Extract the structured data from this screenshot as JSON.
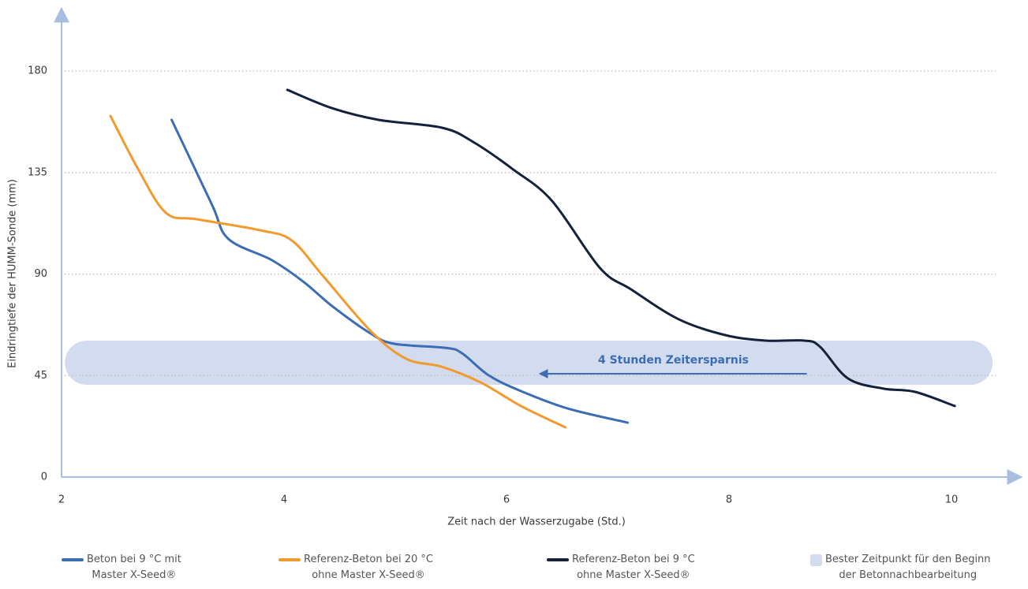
{
  "chart_data": {
    "type": "line",
    "x_label": "Zeit nach der Wasserzugabe (Std.)",
    "y_label": "Eindringtiefe der HUMM-Sonde (mm)",
    "xlim": [
      2,
      10.5
    ],
    "ylim": [
      0,
      205
    ],
    "xticks": [
      2,
      4,
      6,
      8,
      10
    ],
    "yticks": [
      0,
      45,
      90,
      135,
      180
    ],
    "grid": true,
    "series": [
      {
        "name": "Beton bei 9 °C mit\nMaster X-Seed®",
        "color": "#3b6db4",
        "x": [
          2.99,
          3.35,
          3.5,
          3.89,
          4.18,
          4.43,
          4.78,
          4.99,
          5.45,
          5.6,
          5.84,
          6.13,
          6.55,
          7.09
        ],
        "values": [
          158.4,
          121,
          105.6,
          96.2,
          86.4,
          75.9,
          63.6,
          59.1,
          57.3,
          54.9,
          45.1,
          38.1,
          30.4,
          24.1
        ]
      },
      {
        "name": "Referenz-Beton bei 20 °C\nohne Master X-Seed®",
        "color": "#f29a2e",
        "x": [
          2.44,
          2.69,
          2.94,
          3.22,
          3.79,
          4.07,
          4.35,
          4.78,
          5.1,
          5.42,
          5.77,
          6.13,
          6.53
        ],
        "values": [
          160.1,
          136.4,
          117.1,
          114.3,
          109.4,
          104.9,
          89.2,
          64.7,
          52.4,
          48.9,
          41.9,
          31.5,
          22.0
        ]
      },
      {
        "name": "Referenz-Beton bei 9 °C\nohne Master X-Seed®",
        "color": "#13213b",
        "x": [
          4.03,
          4.43,
          4.85,
          5.42,
          5.7,
          6.06,
          6.41,
          6.84,
          7.12,
          7.55,
          7.97,
          8.33,
          8.68,
          8.82,
          9.07,
          9.39,
          9.67,
          10.03
        ],
        "values": [
          171.7,
          163.6,
          158.4,
          154.9,
          148.6,
          136.4,
          122.4,
          92.7,
          83.2,
          69.9,
          62.9,
          60.5,
          60.5,
          57.7,
          43.7,
          39.2,
          37.8,
          31.5
        ]
      }
    ],
    "band": {
      "name": "Bester Zeitpunkt für den Beginn\nder Betonnachbearbeitung",
      "color": "#d3dcef",
      "x": [
        2.03,
        10.37
      ],
      "y": [
        40.9,
        60.5
      ]
    },
    "annotation": {
      "text": "4 Stunden Zeitersparnis",
      "color": "#3b6db4",
      "x_from": 8.7,
      "x_to": 6.3,
      "y": 45.8
    }
  }
}
